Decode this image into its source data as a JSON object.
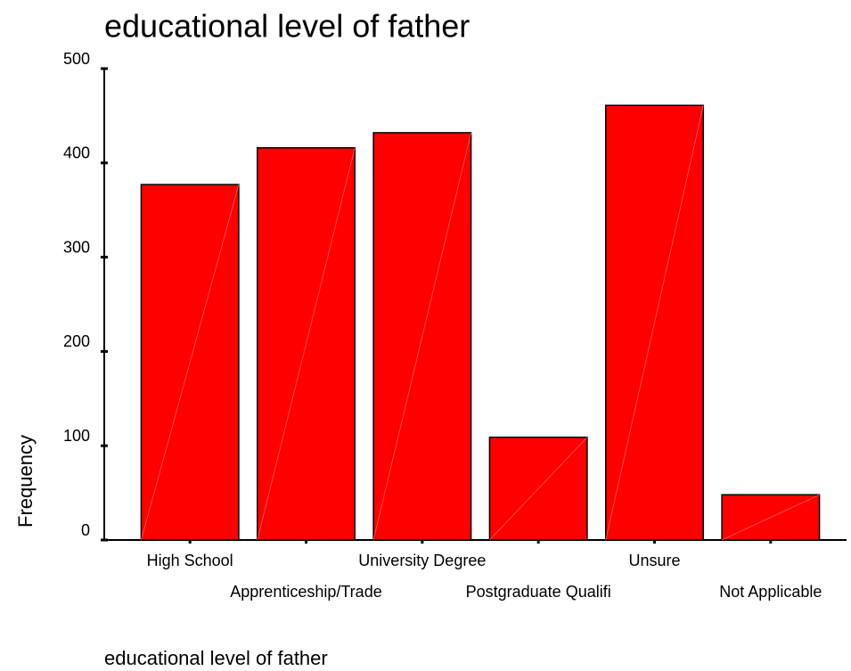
{
  "chart_data": {
    "type": "bar",
    "title": "educational level of father",
    "x_label": "educational level of father",
    "y_label": "Frequency",
    "categories": [
      "High School",
      "Apprenticeship/Trade",
      "University Degree",
      "Postgraduate Qualifi",
      "Unsure",
      "Not Applicable"
    ],
    "values": [
      377,
      416,
      432,
      109,
      461,
      48
    ],
    "color": "#ff0000",
    "ylim": [
      0,
      500
    ],
    "yticks": [
      0,
      100,
      200,
      300,
      400,
      500
    ]
  }
}
